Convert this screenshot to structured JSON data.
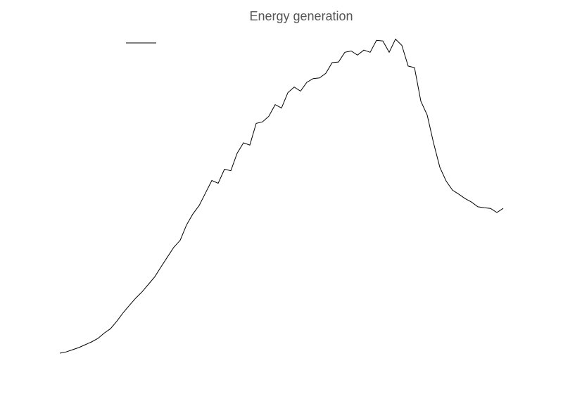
{
  "chart_data": {
    "type": "line",
    "title": "Energy generation",
    "ylim": [
      0,
      101
    ],
    "legend": "upper left",
    "series": [
      {
        "color": "#000000",
        "values": [
          0,
          0.4,
          1.1,
          1.8,
          2.7,
          3.6,
          4.7,
          6.4,
          7.8,
          10.2,
          12.9,
          15.3,
          17.6,
          19.6,
          22.0,
          24.4,
          27.6,
          30.7,
          33.8,
          36.0,
          40.9,
          44.4,
          47.1,
          51.1,
          55.1,
          54.2,
          58.7,
          58.2,
          63.8,
          67.1,
          66.4,
          73.3,
          73.8,
          75.6,
          79.3,
          78.2,
          83.1,
          84.9,
          83.6,
          86.4,
          87.6,
          87.8,
          89.3,
          92.7,
          92.9,
          96.0,
          96.4,
          95.1,
          96.7,
          96.0,
          99.8,
          99.6,
          96.0,
          100.2,
          98.2,
          91.6,
          91.1,
          80.4,
          76.0,
          67.1,
          59.3,
          54.9,
          52.0,
          50.7,
          49.3,
          48.2,
          46.7,
          46.4,
          46.2,
          44.9,
          46.2
        ]
      }
    ]
  }
}
